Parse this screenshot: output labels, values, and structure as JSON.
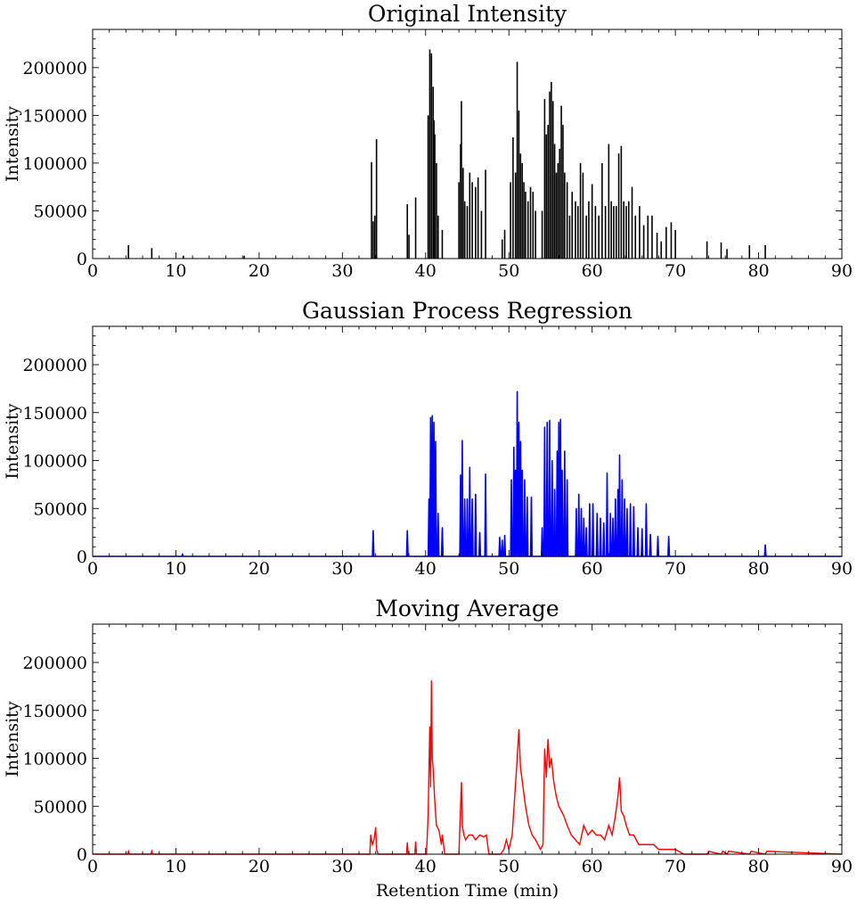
{
  "chart_data": [
    {
      "type": "line",
      "title": "Original Intensity",
      "xlabel": "",
      "ylabel": "Intensity",
      "xlim": [
        0,
        90
      ],
      "ylim": [
        0,
        240000
      ],
      "xticks": [
        "0",
        "10",
        "20",
        "30",
        "40",
        "50",
        "60",
        "70",
        "80",
        "90"
      ],
      "yticks": [
        "0",
        "50000",
        "100000",
        "150000",
        "200000"
      ],
      "color": "#000000",
      "render": "stem",
      "series": [
        {
          "x": [
            4.3,
            7.1,
            10.9,
            18.2,
            33.5,
            33.7,
            33.9,
            34.1,
            37.8,
            38.0,
            38.8,
            40.3,
            40.5,
            40.7,
            40.9,
            41.0,
            41.1,
            41.3,
            41.5,
            42.0,
            44.0,
            44.2,
            44.3,
            44.5,
            44.7,
            45.0,
            45.3,
            45.6,
            46.0,
            46.3,
            46.7,
            47.2,
            49.2,
            49.5,
            50.2,
            50.5,
            50.8,
            51.0,
            51.2,
            51.4,
            51.6,
            51.8,
            52.0,
            52.3,
            52.6,
            52.9,
            53.2,
            54.0,
            54.3,
            54.5,
            54.7,
            54.9,
            55.1,
            55.3,
            55.5,
            55.7,
            55.9,
            56.1,
            56.3,
            56.5,
            56.7,
            57.0,
            57.3,
            57.6,
            58.0,
            58.3,
            58.6,
            58.9,
            59.3,
            59.6,
            60.0,
            60.4,
            60.8,
            61.2,
            61.6,
            62.0,
            62.3,
            62.6,
            62.9,
            63.2,
            63.5,
            63.8,
            64.1,
            64.4,
            64.8,
            65.2,
            65.7,
            66.2,
            66.7,
            67.2,
            67.8,
            68.3,
            68.9,
            69.5,
            70.0,
            73.8,
            75.5,
            76.2,
            78.9,
            80.8
          ],
          "y": [
            14000,
            11000,
            3000,
            3000,
            101000,
            39000,
            45000,
            125000,
            57000,
            25000,
            64000,
            150000,
            219000,
            215000,
            180000,
            145000,
            130000,
            100000,
            45000,
            30000,
            80000,
            120000,
            165000,
            95000,
            60000,
            55000,
            90000,
            80000,
            75000,
            85000,
            50000,
            93000,
            20000,
            30000,
            80000,
            127000,
            90000,
            206000,
            155000,
            110000,
            100000,
            80000,
            70000,
            60000,
            75000,
            70000,
            50000,
            50000,
            167000,
            130000,
            140000,
            175000,
            185000,
            165000,
            120000,
            90000,
            100000,
            115000,
            160000,
            140000,
            90000,
            80000,
            45000,
            70000,
            60000,
            55000,
            100000,
            90000,
            45000,
            60000,
            78000,
            55000,
            45000,
            100000,
            55000,
            120000,
            60000,
            55000,
            55000,
            110000,
            118000,
            60000,
            55000,
            60000,
            75000,
            45000,
            55000,
            35000,
            45000,
            45000,
            27000,
            18000,
            33000,
            38000,
            30000,
            18000,
            17000,
            10000,
            14000,
            14000
          ]
        }
      ]
    },
    {
      "type": "line",
      "title": "Gaussian Process Regression",
      "xlabel": "",
      "ylabel": "Intensity",
      "xlim": [
        0,
        90
      ],
      "ylim": [
        0,
        240000
      ],
      "xticks": [
        "0",
        "10",
        "20",
        "30",
        "40",
        "50",
        "60",
        "70",
        "80",
        "90"
      ],
      "yticks": [
        "0",
        "50000",
        "100000",
        "150000",
        "200000"
      ],
      "color": "#0000ff",
      "render": "peaks",
      "series": [
        {
          "x": [
            10.8,
            33.7,
            37.8,
            40.4,
            40.6,
            40.8,
            41.0,
            41.2,
            41.5,
            42.0,
            44.2,
            44.4,
            44.7,
            45.0,
            45.3,
            45.6,
            46.0,
            46.5,
            47.2,
            48.9,
            49.2,
            49.5,
            50.3,
            50.6,
            50.8,
            51.0,
            51.2,
            51.4,
            51.6,
            51.9,
            52.2,
            52.7,
            54.0,
            54.3,
            54.6,
            54.9,
            55.2,
            55.5,
            55.8,
            56.0,
            56.2,
            56.4,
            56.7,
            57.0,
            58.1,
            58.4,
            58.7,
            59.0,
            59.3,
            59.7,
            60.1,
            60.6,
            61.0,
            61.4,
            61.8,
            62.2,
            62.5,
            62.8,
            63.1,
            63.3,
            63.6,
            63.9,
            64.2,
            64.6,
            65.0,
            65.5,
            66.0,
            66.5,
            67.0,
            67.9,
            69.2,
            80.8
          ],
          "y": [
            2000,
            27000,
            27000,
            60000,
            145000,
            147000,
            140000,
            120000,
            45000,
            30000,
            85000,
            121000,
            60000,
            60000,
            93000,
            60000,
            65000,
            25000,
            86000,
            20000,
            17000,
            22000,
            80000,
            114000,
            90000,
            172000,
            140000,
            120000,
            90000,
            80000,
            62000,
            62000,
            30000,
            135000,
            140000,
            142000,
            100000,
            70000,
            110000,
            140000,
            143000,
            90000,
            110000,
            80000,
            50000,
            65000,
            50000,
            40000,
            30000,
            55000,
            55000,
            45000,
            40000,
            35000,
            87000,
            45000,
            40000,
            60000,
            70000,
            106000,
            80000,
            60000,
            50000,
            55000,
            52000,
            30000,
            29000,
            55000,
            23000,
            21000,
            21000,
            12000
          ]
        }
      ]
    },
    {
      "type": "line",
      "title": "Moving Average",
      "xlabel": "Retention Time (min)",
      "ylabel": "Intensity",
      "xlim": [
        0,
        90
      ],
      "ylim": [
        0,
        240000
      ],
      "xticks": [
        "0",
        "10",
        "20",
        "30",
        "40",
        "50",
        "60",
        "70",
        "80",
        "90"
      ],
      "yticks": [
        "0",
        "50000",
        "100000",
        "150000",
        "200000"
      ],
      "color": "#ff0000",
      "render": "line",
      "series": [
        {
          "x": [
            0,
            4.2,
            4.3,
            4.4,
            7.0,
            7.1,
            7.2,
            33.3,
            33.4,
            33.6,
            33.8,
            34.0,
            34.1,
            34.3,
            37.7,
            37.8,
            37.9,
            38.7,
            38.8,
            38.9,
            40.1,
            40.3,
            40.5,
            40.6,
            40.7,
            40.8,
            40.9,
            41.1,
            41.3,
            41.6,
            41.9,
            42.0,
            42.3,
            44.0,
            44.2,
            44.3,
            44.4,
            44.6,
            44.8,
            45.2,
            45.6,
            46.0,
            46.5,
            47.0,
            47.3,
            47.6,
            49.0,
            49.4,
            49.7,
            50.0,
            50.4,
            50.7,
            51.0,
            51.2,
            51.4,
            51.7,
            52.0,
            52.4,
            52.8,
            53.2,
            53.8,
            54.1,
            54.3,
            54.5,
            54.7,
            54.9,
            55.1,
            55.4,
            55.7,
            56.0,
            56.3,
            56.6,
            57.0,
            57.5,
            58.0,
            58.5,
            59.0,
            59.5,
            60.0,
            60.5,
            61.0,
            61.5,
            62.0,
            62.4,
            62.8,
            63.1,
            63.3,
            63.5,
            63.8,
            64.1,
            64.5,
            65.0,
            65.6,
            66.2,
            66.8,
            67.4,
            68.0,
            69.0,
            70.0,
            71.0,
            73.8,
            74.0,
            75.5,
            75.7,
            76.2,
            76.4,
            78.9,
            79.1,
            80.8,
            81.0,
            90.0
          ],
          "y": [
            0,
            0,
            3000,
            0,
            0,
            3000,
            0,
            0,
            20000,
            10000,
            15000,
            28000,
            5000,
            0,
            0,
            12000,
            0,
            0,
            13000,
            0,
            0,
            40000,
            133000,
            70000,
            181000,
            100000,
            90000,
            55000,
            30000,
            25000,
            10000,
            20000,
            0,
            0,
            50000,
            75000,
            30000,
            20000,
            15000,
            20000,
            20000,
            15000,
            20000,
            18000,
            20000,
            0,
            0,
            5000,
            15000,
            5000,
            20000,
            60000,
            100000,
            130000,
            90000,
            70000,
            50000,
            30000,
            20000,
            15000,
            5000,
            10000,
            110000,
            80000,
            120000,
            90000,
            100000,
            75000,
            60000,
            50000,
            45000,
            40000,
            30000,
            20000,
            15000,
            10000,
            30000,
            20000,
            25000,
            20000,
            20000,
            15000,
            30000,
            20000,
            40000,
            60000,
            80000,
            45000,
            40000,
            30000,
            20000,
            20000,
            10000,
            10000,
            10000,
            10000,
            5000,
            5000,
            5000,
            0,
            0,
            3000,
            0,
            3000,
            0,
            3000,
            0,
            3000,
            0,
            3000,
            0
          ]
        }
      ]
    }
  ]
}
